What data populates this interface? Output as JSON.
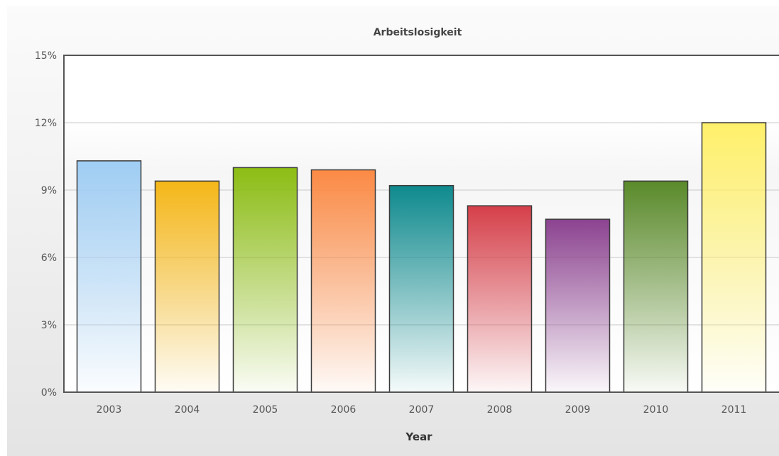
{
  "chart_data": {
    "type": "bar",
    "title": "Arbeitslosigkeit",
    "xlabel": "Year",
    "ylabel": "",
    "categories": [
      "2003",
      "2004",
      "2005",
      "2006",
      "2007",
      "2008",
      "2009",
      "2010",
      "2011"
    ],
    "values": [
      10.3,
      9.4,
      10.0,
      9.9,
      9.2,
      8.3,
      7.7,
      9.4,
      12.0
    ],
    "ylim": [
      0,
      15
    ],
    "yticks": [
      "0%",
      "3%",
      "6%",
      "9%",
      "12%",
      "15%"
    ],
    "ytick_values": [
      0,
      3,
      6,
      9,
      12,
      15
    ],
    "grid": true,
    "legend": "none",
    "bar_colors": [
      "#9fcdf4",
      "#f5b718",
      "#8cbd14",
      "#fb8a45",
      "#0e8a8e",
      "#d6404a",
      "#8c4390",
      "#5a8a2a",
      "#fff06a"
    ]
  }
}
